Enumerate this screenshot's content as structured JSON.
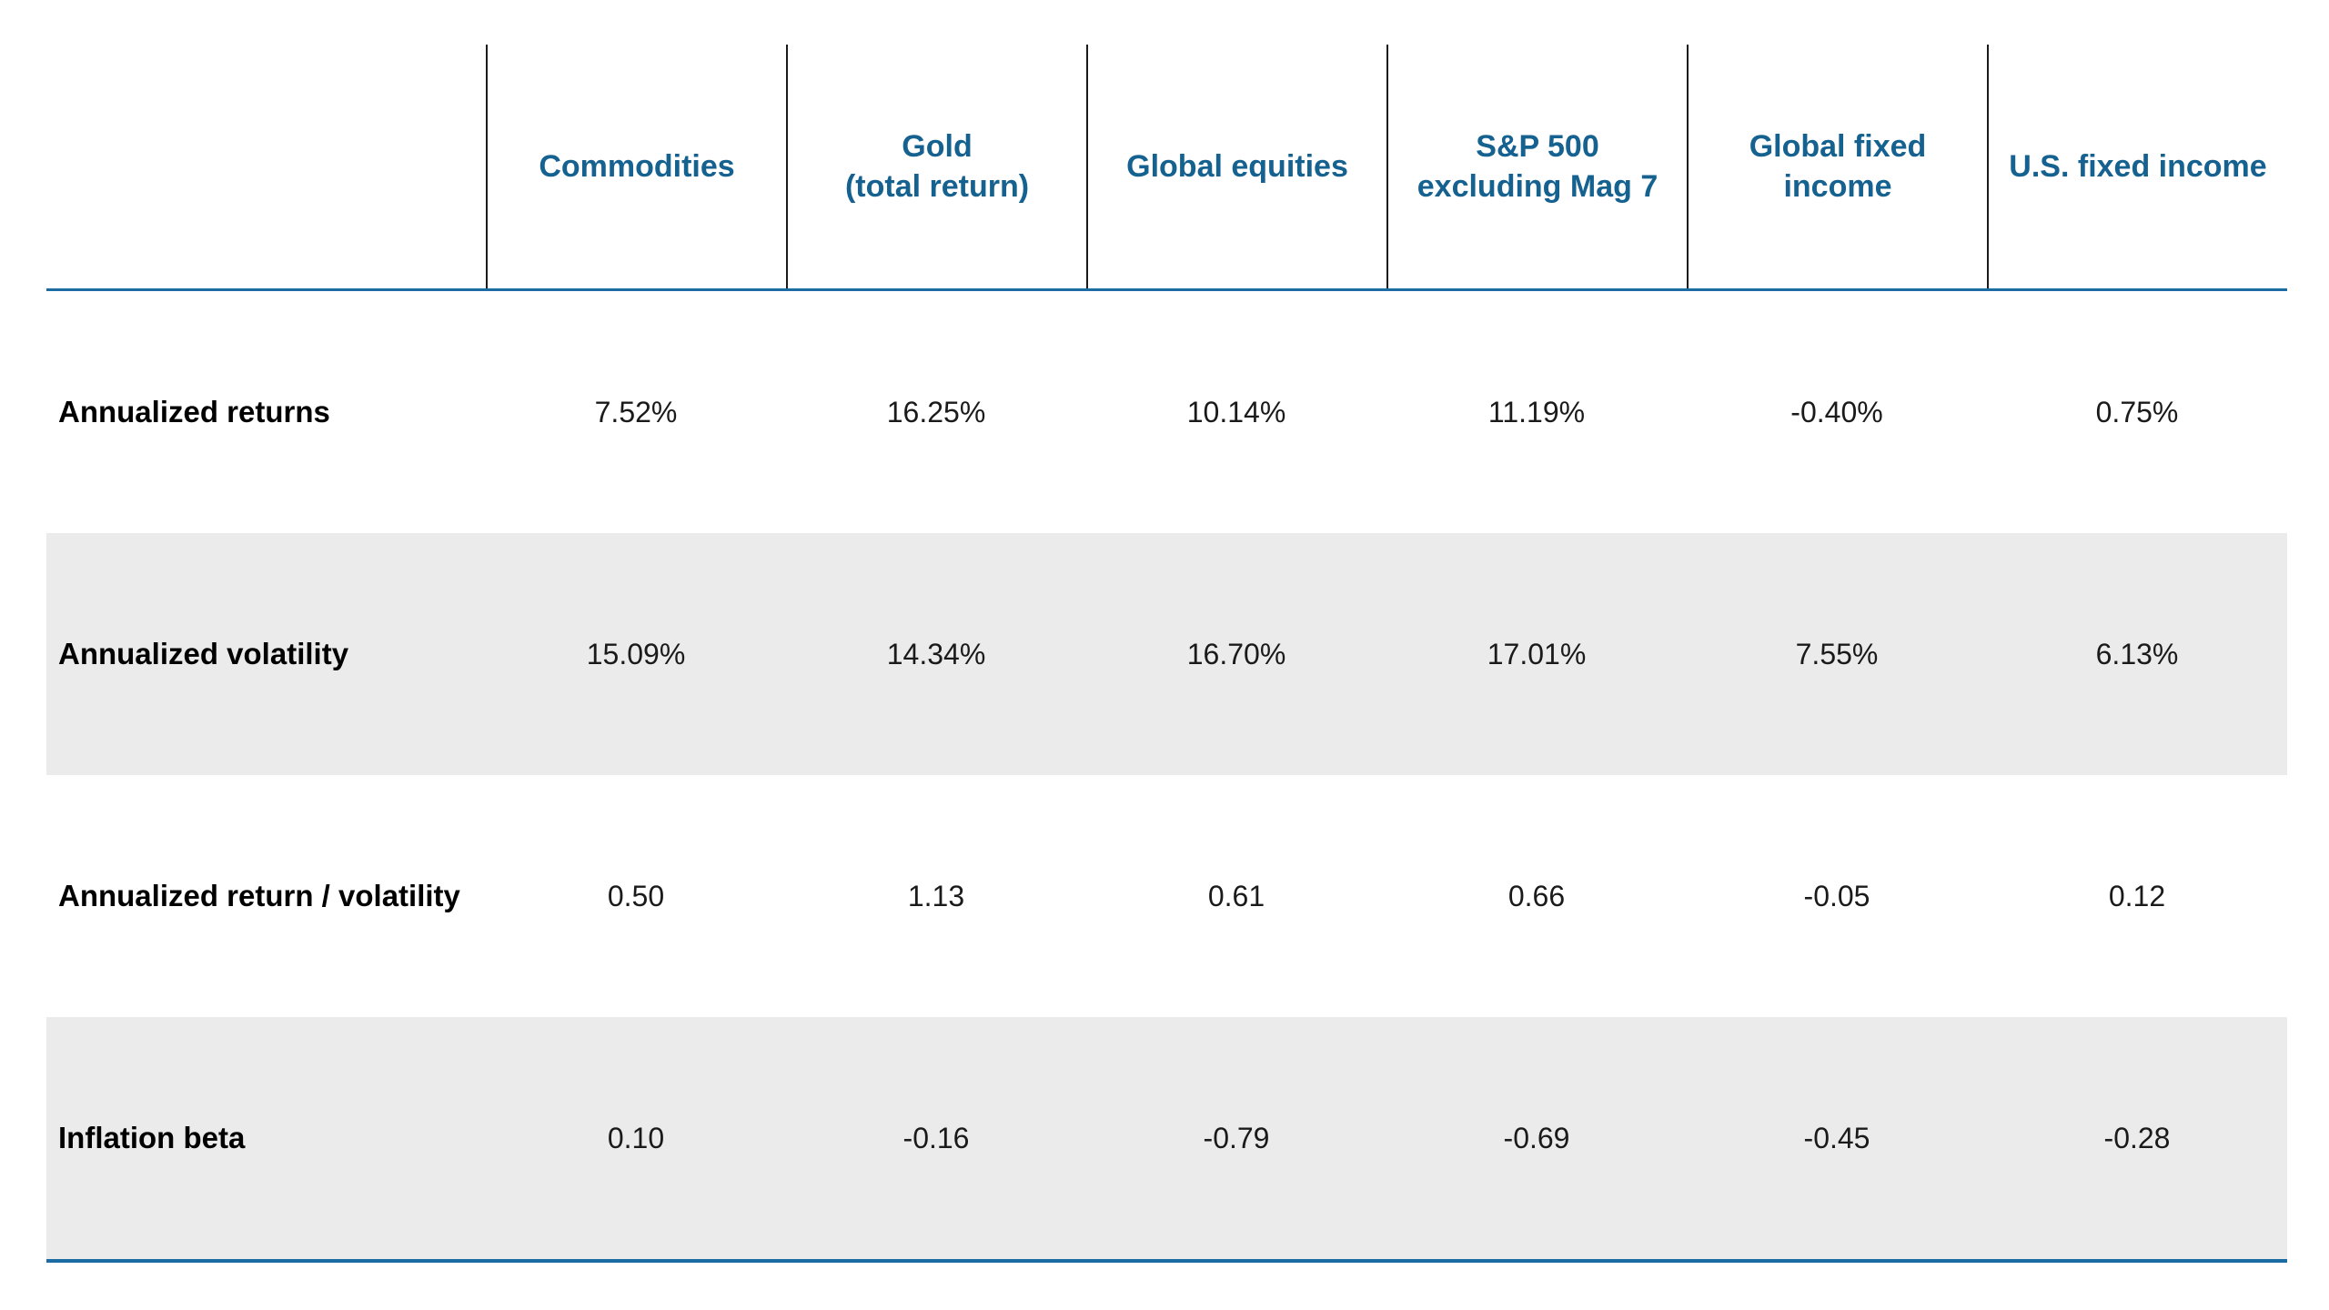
{
  "colors": {
    "header_text": "#15618f",
    "rule_blue": "#1b6ca3",
    "row_shade": "#ebebeb",
    "header_separator": "#1a1a1a",
    "body_text": "#1a1a1a"
  },
  "chart_data": {
    "type": "table",
    "title": "",
    "corner_label": "",
    "columns": [
      "Commodities",
      "Gold\n(total return)",
      "Global equities",
      "S&P 500\nexcluding Mag 7",
      "Global fixed\nincome",
      "U.S. fixed income"
    ],
    "rows": [
      {
        "label": "Annualized returns",
        "values": [
          "7.52%",
          "16.25%",
          "10.14%",
          "11.19%",
          "-0.40%",
          "0.75%"
        ],
        "shaded": false
      },
      {
        "label": "Annualized volatility",
        "values": [
          "15.09%",
          "14.34%",
          "16.70%",
          "17.01%",
          "7.55%",
          "6.13%"
        ],
        "shaded": true
      },
      {
        "label": "Annualized return / volatility",
        "values": [
          "0.50",
          "1.13",
          "0.61",
          "0.66",
          "-0.05",
          "0.12"
        ],
        "shaded": false
      },
      {
        "label": "Inflation beta",
        "values": [
          "0.10",
          "-0.16",
          "-0.79",
          "-0.69",
          "-0.45",
          "-0.28"
        ],
        "shaded": true
      }
    ]
  }
}
